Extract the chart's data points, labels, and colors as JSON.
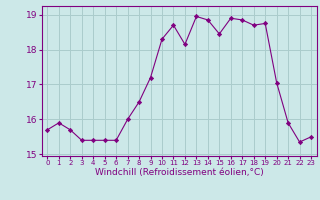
{
  "x": [
    0,
    1,
    2,
    3,
    4,
    5,
    6,
    7,
    8,
    9,
    10,
    11,
    12,
    13,
    14,
    15,
    16,
    17,
    18,
    19,
    20,
    21,
    22,
    23
  ],
  "y": [
    15.7,
    15.9,
    15.7,
    15.4,
    15.4,
    15.4,
    15.4,
    16.0,
    16.5,
    17.2,
    18.3,
    18.7,
    18.15,
    18.95,
    18.85,
    18.45,
    18.9,
    18.85,
    18.7,
    18.75,
    17.05,
    15.9,
    15.35,
    15.5
  ],
  "line_color": "#800080",
  "marker": "D",
  "marker_size": 2.2,
  "bg_color": "#cce8e8",
  "grid_color": "#aacccc",
  "xlabel": "Windchill (Refroidissement éolien,°C)",
  "ylim": [
    14.95,
    19.25
  ],
  "xlim": [
    -0.5,
    23.5
  ],
  "yticks": [
    15,
    16,
    17,
    18,
    19
  ],
  "xticks": [
    0,
    1,
    2,
    3,
    4,
    5,
    6,
    7,
    8,
    9,
    10,
    11,
    12,
    13,
    14,
    15,
    16,
    17,
    18,
    19,
    20,
    21,
    22,
    23
  ],
  "tick_color": "#800080",
  "label_color": "#800080",
  "spine_color": "#800080",
  "xlabel_fontsize": 6.5,
  "xtick_fontsize": 5.0,
  "ytick_fontsize": 6.5
}
